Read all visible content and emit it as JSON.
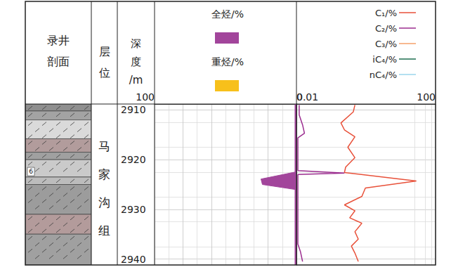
{
  "chart_data": {
    "type": "well_log",
    "headers": {
      "lithology": "录井\n剖面",
      "formation": "层\n位",
      "depth": "深\n度\n/m"
    },
    "formation_name": "马\n家\n沟\n组",
    "ylim": [
      2908.8,
      2941.2
    ],
    "yticks": [
      2910,
      2920,
      2930,
      2940
    ],
    "grid": true,
    "lithology": [
      {
        "top": 2908.8,
        "bottom": 2910.2,
        "color": "#8f8f8f"
      },
      {
        "top": 2910.2,
        "bottom": 2912.0,
        "color": "#a3a3a3"
      },
      {
        "top": 2912.0,
        "bottom": 2915.8,
        "color": "#dadada"
      },
      {
        "top": 2915.8,
        "bottom": 2918.5,
        "color": "#b29c9c"
      },
      {
        "top": 2918.5,
        "bottom": 2920.0,
        "color": "#a0a0a0"
      },
      {
        "top": 2920.0,
        "bottom": 2923.5,
        "color": "#cacaca"
      },
      {
        "top": 2923.5,
        "bottom": 2925.0,
        "color": "#bcbcbc"
      },
      {
        "top": 2925.0,
        "bottom": 2931.0,
        "color": "#9c9c9c"
      },
      {
        "top": 2931.0,
        "bottom": 2935.0,
        "color": "#b39b9b"
      },
      {
        "top": 2935.0,
        "bottom": 2941.2,
        "color": "#a0a0a0"
      }
    ],
    "lithology_marks": [
      {
        "depth": 2922.4,
        "label": "6"
      }
    ],
    "tracks": [
      {
        "type": "area",
        "xlim": [
          100,
          0
        ],
        "xticks": [
          100,
          0
        ],
        "series": [
          {
            "name": "全烃/%",
            "color": "#a2459b",
            "y": [
              2908.8,
              2922.5,
              2923.9,
              2925.0,
              2926.0,
              2941.2
            ],
            "values": [
              1,
              1,
              25,
              24,
              1,
              1
            ]
          },
          {
            "name": "重烃/%",
            "color": "#f7c01b"
          }
        ]
      },
      {
        "type": "line",
        "log": "x",
        "xlim": [
          0.01,
          100
        ],
        "xticks": [
          0.01,
          100
        ],
        "series": [
          {
            "name": "C₁/%",
            "color": "#e8513a",
            "y": [
              2909.0,
              2910.4,
              2912.6,
              2914.0,
              2915.4,
              2917.5,
              2919.6,
              2921.5,
              2922.6,
              2924.3,
              2925.7,
              2927.4,
              2929.1,
              2930.3,
              2931.7,
              2932.8,
              2934.5,
              2936.0,
              2937.4,
              2938.8,
              2940.5
            ],
            "values": [
              0.48,
              0.43,
              0.19,
              0.24,
              0.48,
              0.3,
              0.48,
              0.26,
              0.24,
              28,
              0.96,
              0.76,
              0.24,
              0.48,
              0.34,
              0.76,
              0.48,
              0.6,
              0.38,
              0.48,
              0.6
            ]
          },
          {
            "name": "C₂/%",
            "color": "#9b2d8f",
            "y": [
              2909.0,
              2911.0,
              2913.0,
              2914.7,
              2915.6,
              2917.5,
              2921.0,
              2922.2,
              2922.7,
              2923.0,
              2927.0,
              2933.0,
              2937.0,
              2938.5,
              2940.5
            ],
            "values": [
              0.012,
              0.012,
              0.015,
              0.017,
              0.011,
              0.011,
              0.011,
              0.011,
              0.24,
              0.011,
              0.011,
              0.011,
              0.011,
              0.013,
              0.015
            ]
          },
          {
            "name": "C₃/%",
            "color": "#f4a06b"
          },
          {
            "name": "iC₄/%",
            "color": "#1c6e4f"
          },
          {
            "name": "nC₄/%",
            "color": "#9bd6ec"
          }
        ]
      }
    ]
  }
}
